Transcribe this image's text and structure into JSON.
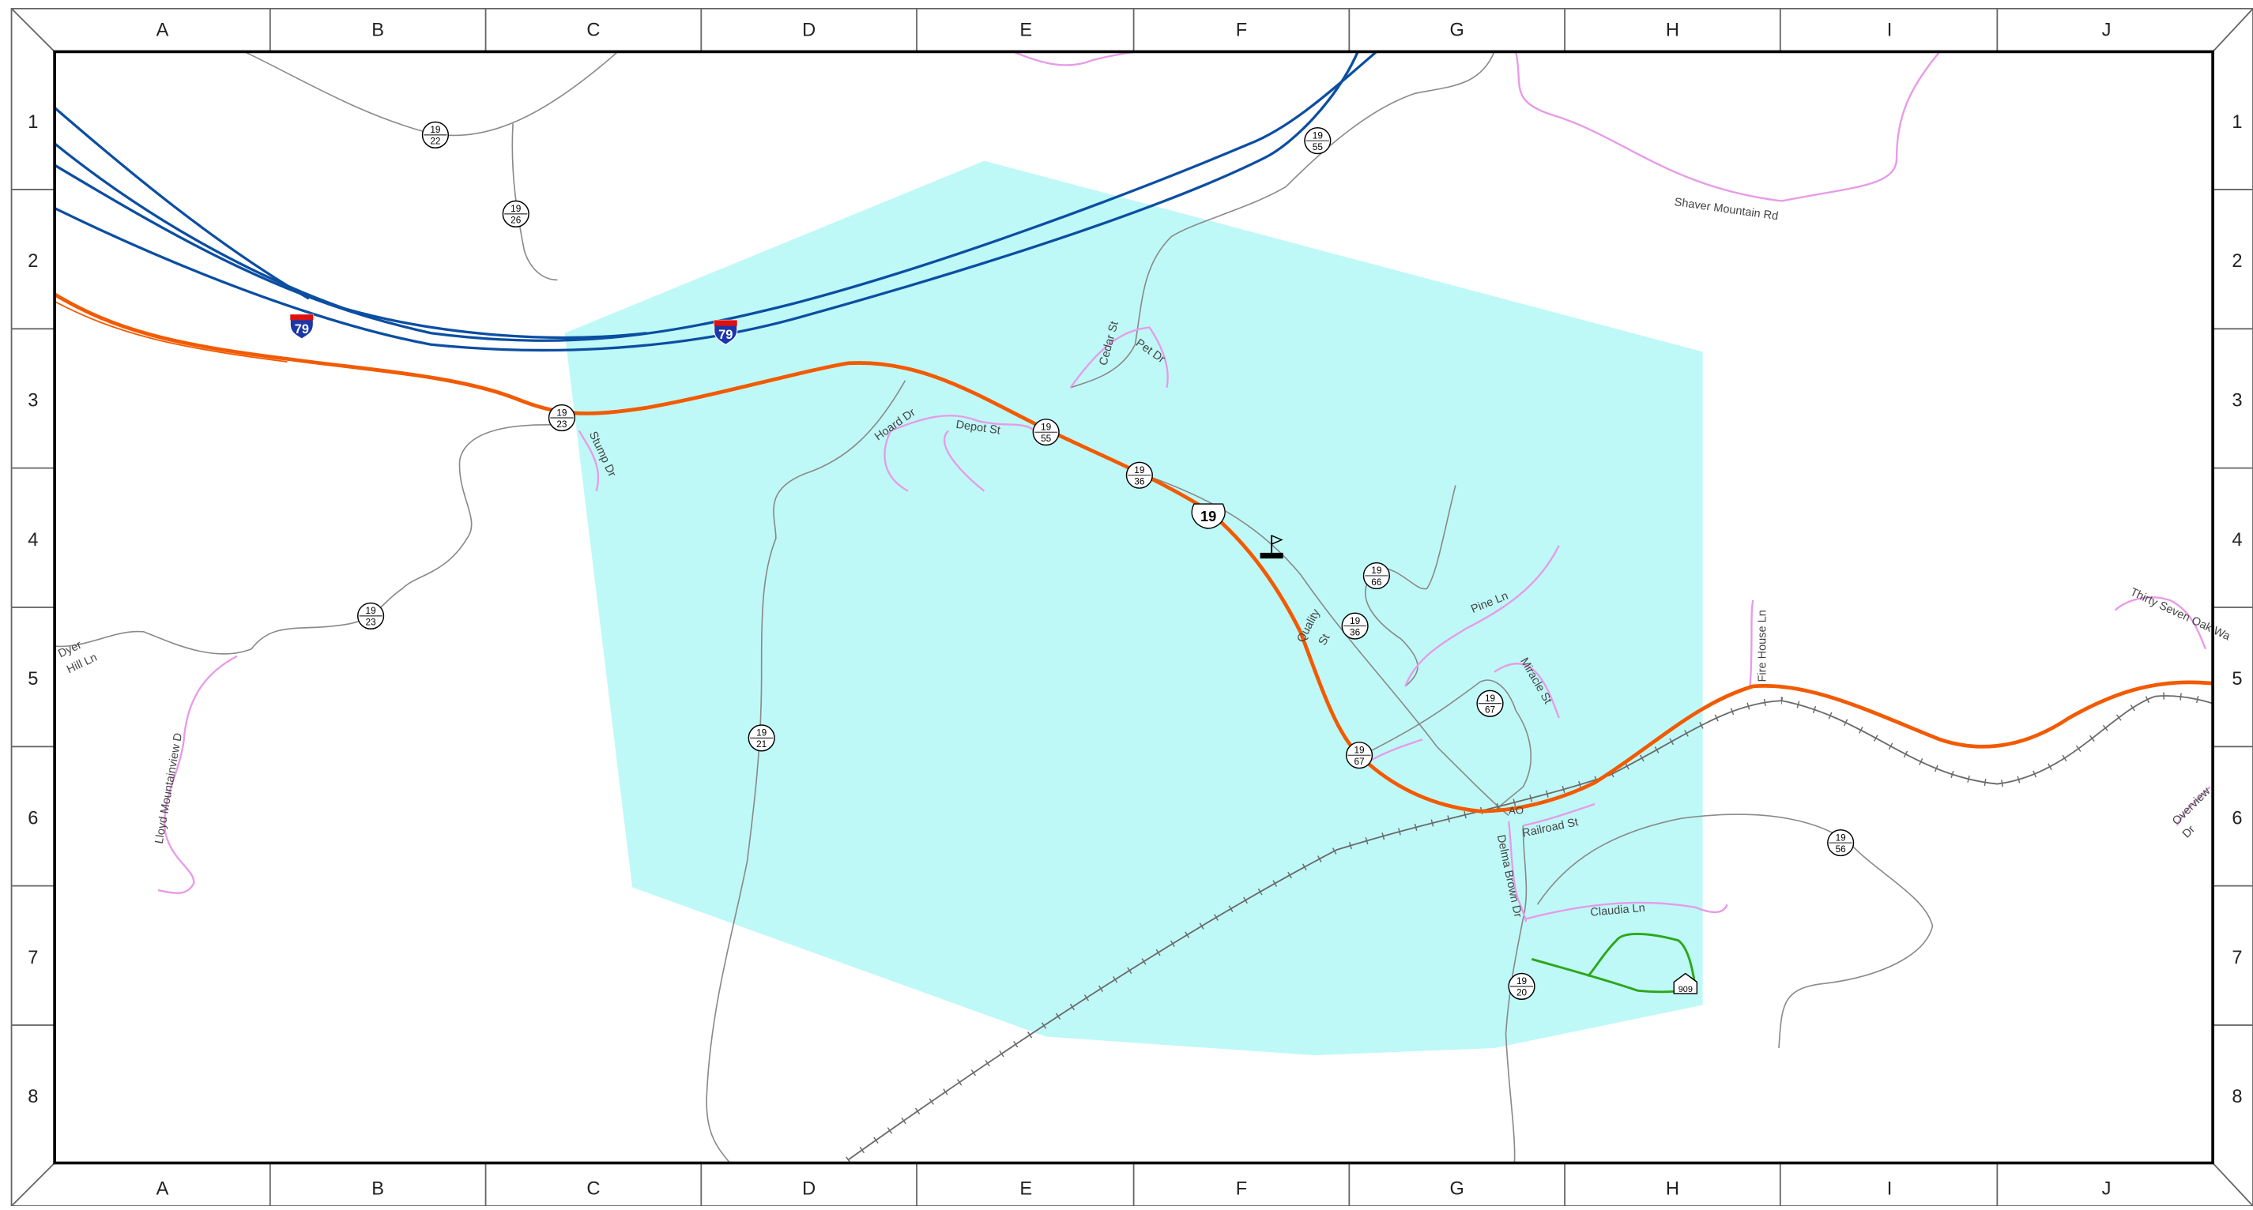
{
  "grid": {
    "columns": [
      "A",
      "B",
      "C",
      "D",
      "E",
      "F",
      "G",
      "H",
      "I",
      "J"
    ],
    "rows": [
      "1",
      "2",
      "3",
      "4",
      "5",
      "6",
      "7",
      "8"
    ]
  },
  "colors": {
    "interstate": "#0b4ea2",
    "us_highway": "#f25a00",
    "local_road": "#8a8a8a",
    "named_street": "#e79be8",
    "area_fill": "#bff9f7",
    "trail": "#2ea61a",
    "railroad": "#6a6a6a"
  },
  "shields": {
    "interstate_79": "79",
    "us_19": "19",
    "county_top": "19",
    "county_22": "22",
    "county_26": "26",
    "county_55": "55",
    "county_23": "23",
    "county_36": "36",
    "county_66": "66",
    "county_67": "67",
    "county_21": "21",
    "county_20": "20",
    "county_56": "56",
    "route_909": "909"
  },
  "labels": {
    "shaver_mountain_rd": "Shaver Mountain Rd",
    "cedar_st": "Cedar St",
    "pet_dr": "Pet Dr",
    "hoard_dr": "Hoard Dr",
    "depot_st": "Depot St",
    "stump_dr": "Stump Dr",
    "dyer_hill_ln_1": "Dyer",
    "dyer_hill_ln_2": "Hill Ln",
    "lloyd_mountainview": "Lloyd Mountainview D",
    "pine_ln": "Pine Ln",
    "quality_st_1": "Quality",
    "quality_st_2": "St",
    "miracle_st": "Miracle St",
    "fire_house_ln": "Fire House Ln",
    "thirty_seven_oak": "Thirty Seven Oak Wa",
    "overview_dr_1": "Overview",
    "overview_dr_2": "Dr",
    "ao": "AO",
    "railroad_st": "Railroad St",
    "delma_brown_dr": "Delma Brown Dr",
    "claudia_ln": "Claudia Ln"
  }
}
